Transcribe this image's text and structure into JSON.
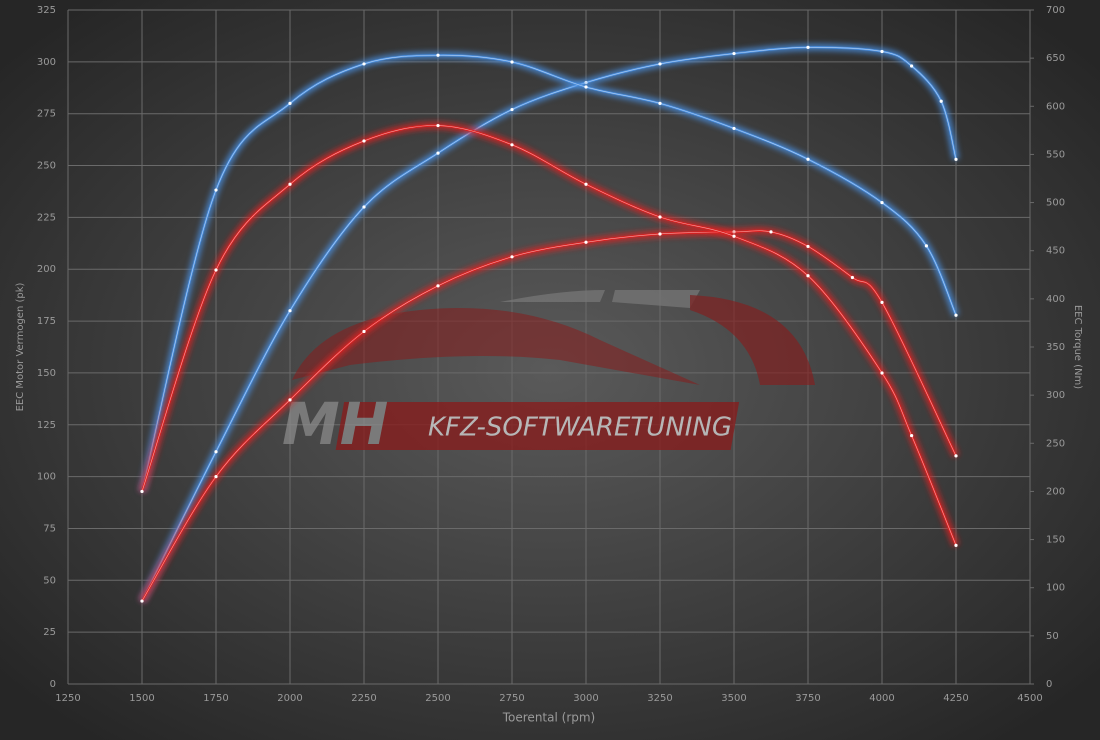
{
  "chart_data": {
    "type": "line",
    "x_label": "Toerental (rpm)",
    "y_label": "EEC Motor Vermogen (pk)",
    "y2_label": "EEC Torque (Nm)",
    "annotations": [
      "MH",
      "KFZ-SOFTWARETUNING"
    ],
    "xlim": [
      1250,
      4500
    ],
    "xticks": [
      1250,
      1500,
      1750,
      2000,
      2250,
      2500,
      2750,
      3000,
      3250,
      3500,
      3750,
      4000,
      4250,
      4500
    ],
    "ylim": [
      0,
      325
    ],
    "yticks": [
      0,
      25,
      50,
      75,
      100,
      125,
      150,
      175,
      200,
      225,
      250,
      275,
      300,
      325
    ],
    "y2lim": [
      0,
      700
    ],
    "y2ticks": [
      0,
      50,
      100,
      150,
      200,
      250,
      300,
      350,
      400,
      450,
      500,
      550,
      600,
      650,
      700
    ],
    "grid": true,
    "series": [
      {
        "color": "#4a8fe0",
        "x": [
          1500,
          1750,
          2000,
          2250,
          2500,
          2750,
          3000,
          3250,
          3500,
          3750,
          4000,
          4100,
          4200,
          4250
        ],
        "values": [
          40,
          112,
          180,
          230,
          256,
          277,
          290,
          299,
          304,
          307,
          305,
          298,
          281,
          253
        ]
      },
      {
        "color": "#e02020",
        "x": [
          1500,
          1750,
          2000,
          2250,
          2500,
          2750,
          3000,
          3250,
          3500,
          3625,
          3750,
          3900,
          4000,
          4250
        ],
        "values": [
          40,
          100,
          137,
          170,
          192,
          206,
          213,
          217,
          218,
          218,
          211,
          196,
          184,
          110
        ]
      },
      {
        "color": "#4a8fe0",
        "axis": "y2",
        "x": [
          1500,
          1750,
          2000,
          2250,
          2500,
          2750,
          3000,
          3250,
          3500,
          3750,
          4000,
          4150,
          4250
        ],
        "values": [
          200,
          513,
          603,
          644,
          653,
          646,
          620,
          603,
          577,
          545,
          500,
          455,
          383
        ]
      },
      {
        "color": "#e02020",
        "axis": "y2",
        "x": [
          1500,
          1750,
          2000,
          2250,
          2500,
          2750,
          3000,
          3250,
          3500,
          3750,
          4000,
          4100,
          4250
        ],
        "values": [
          200,
          430,
          519,
          564,
          580,
          560,
          519,
          485,
          465,
          424,
          323,
          258,
          144
        ]
      }
    ]
  }
}
